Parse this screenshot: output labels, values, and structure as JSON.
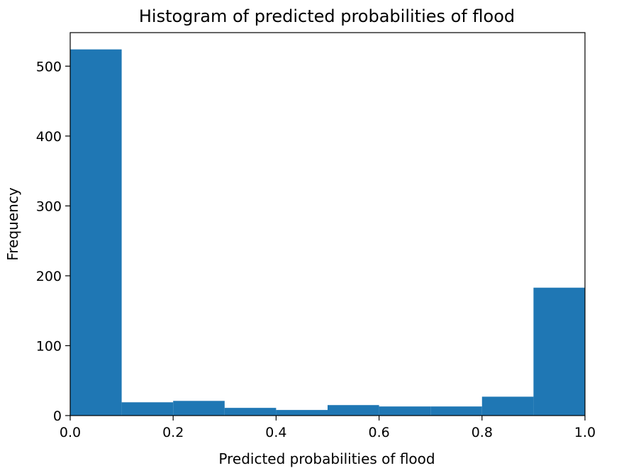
{
  "chart_data": {
    "type": "bar",
    "title": "Histogram of predicted probabilities of flood",
    "xlabel": "Predicted probabilities of flood",
    "ylabel": "Frequency",
    "xlim": [
      0.0,
      1.0
    ],
    "ylim": [
      0,
      548
    ],
    "xticks": [
      0.0,
      0.2,
      0.4,
      0.6,
      0.8,
      1.0
    ],
    "xtick_labels": [
      "0.0",
      "0.2",
      "0.4",
      "0.6",
      "0.8",
      "1.0"
    ],
    "yticks": [
      0,
      100,
      200,
      300,
      400,
      500
    ],
    "ytick_labels": [
      "0",
      "100",
      "200",
      "300",
      "400",
      "500"
    ],
    "bin_edges": [
      0.0,
      0.1,
      0.2,
      0.3,
      0.4,
      0.5,
      0.6,
      0.7,
      0.8,
      0.9,
      1.0
    ],
    "values": [
      524,
      19,
      21,
      11,
      8,
      15,
      13,
      13,
      27,
      183
    ],
    "bar_color": "#1f77b4",
    "grid": false,
    "legend": "none"
  }
}
